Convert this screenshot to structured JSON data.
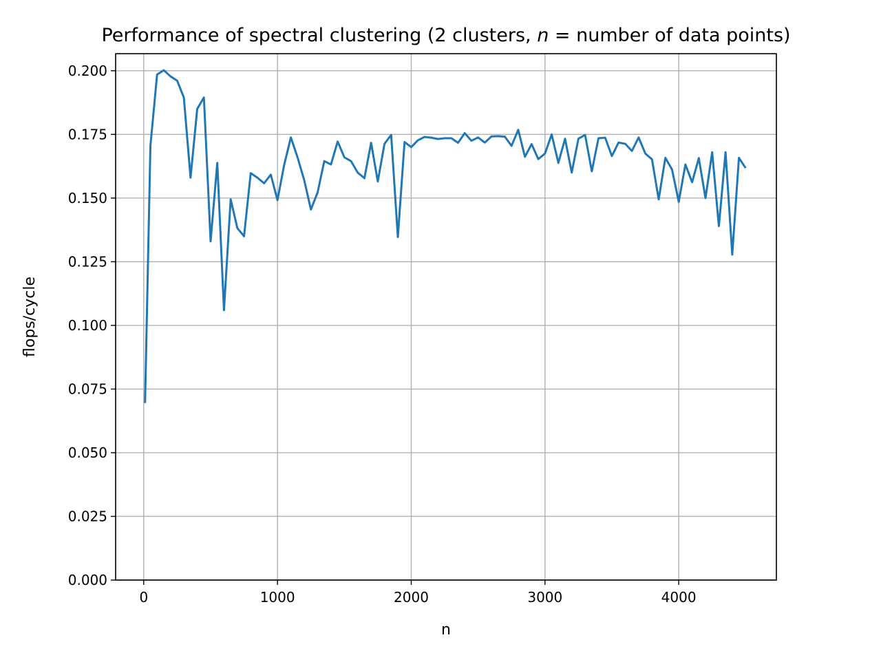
{
  "chart_data": {
    "type": "line",
    "title_pre": "Performance of spectral clustering (2 clusters, ",
    "title_var": "n",
    "title_post": " = number of data points)",
    "xlabel": "n",
    "ylabel": "flops/cycle",
    "xlim": [
      -210,
      4730
    ],
    "ylim": [
      0.0,
      0.2067
    ],
    "xticks": [
      0,
      1000,
      2000,
      3000,
      4000
    ],
    "yticks": [
      0.0,
      0.025,
      0.05,
      0.075,
      0.1,
      0.125,
      0.15,
      0.175,
      0.2
    ],
    "xtick_labels": [
      "0",
      "1000",
      "2000",
      "3000",
      "4000"
    ],
    "ytick_labels": [
      "0.000",
      "0.025",
      "0.050",
      "0.075",
      "0.100",
      "0.125",
      "0.150",
      "0.175",
      "0.200"
    ],
    "grid": true,
    "line_color": "#1f77b4",
    "series": [
      {
        "x": [
          10,
          50,
          100,
          150,
          200,
          250,
          300,
          350,
          400,
          450,
          500,
          550,
          600,
          650,
          700,
          750,
          800,
          850,
          900,
          950,
          1000,
          1050,
          1100,
          1150,
          1200,
          1250,
          1300,
          1350,
          1400,
          1450,
          1500,
          1550,
          1600,
          1650,
          1700,
          1750,
          1800,
          1850,
          1900,
          1950,
          2000,
          2050,
          2100,
          2150,
          2200,
          2250,
          2300,
          2350,
          2400,
          2450,
          2500,
          2550,
          2600,
          2650,
          2700,
          2750,
          2800,
          2850,
          2900,
          2950,
          3000,
          3050,
          3100,
          3150,
          3200,
          3250,
          3300,
          3350,
          3400,
          3450,
          3500,
          3550,
          3600,
          3650,
          3700,
          3750,
          3800,
          3850,
          3900,
          3950,
          4000,
          4050,
          4100,
          4150,
          4200,
          4250,
          4300,
          4350,
          4400,
          4450,
          4500
        ],
        "y": [
          0.0695,
          0.1705,
          0.1985,
          0.2002,
          0.1978,
          0.1961,
          0.1895,
          0.158,
          0.185,
          0.1895,
          0.133,
          0.1638,
          0.106,
          0.1495,
          0.1382,
          0.135,
          0.1598,
          0.158,
          0.1558,
          0.1592,
          0.1492,
          0.163,
          0.1738,
          0.166,
          0.157,
          0.1455,
          0.1522,
          0.1645,
          0.1632,
          0.1722,
          0.166,
          0.1645,
          0.16,
          0.1578,
          0.1717,
          0.1565,
          0.1713,
          0.1748,
          0.1347,
          0.172,
          0.17,
          0.1727,
          0.174,
          0.1737,
          0.1732,
          0.1735,
          0.1735,
          0.1717,
          0.1755,
          0.1725,
          0.1738,
          0.1718,
          0.1742,
          0.1743,
          0.1741,
          0.1705,
          0.1768,
          0.1662,
          0.1712,
          0.1653,
          0.1675,
          0.175,
          0.1638,
          0.1733,
          0.16,
          0.1733,
          0.1748,
          0.1605,
          0.1735,
          0.1737,
          0.1665,
          0.1718,
          0.1713,
          0.1685,
          0.1738,
          0.1675,
          0.1652,
          0.1495,
          0.1658,
          0.1612,
          0.1485,
          0.1632,
          0.1562,
          0.1657,
          0.15,
          0.168,
          0.139,
          0.168,
          0.1278,
          0.1658,
          0.1618
        ]
      }
    ]
  }
}
